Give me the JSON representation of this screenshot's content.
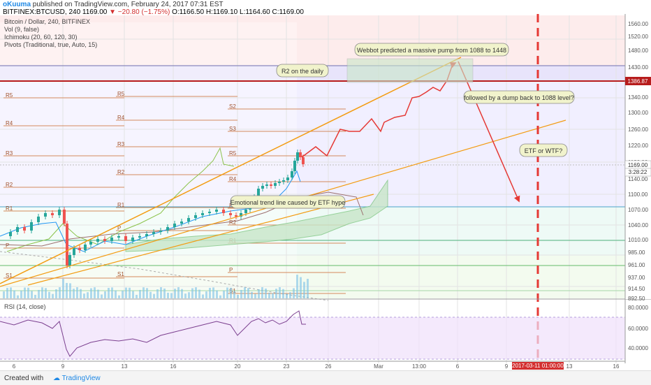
{
  "header": {
    "author": "oKuuma",
    "published_text": "published on TradingView.com, February 24, 2017 07:31 EST",
    "symbol": "BITFINEX:BTCUSD, 240",
    "last": "1169.00",
    "change": "−20.80 (−1.75%)",
    "ohlc": "O:1166.50 H:1169.10 L:1164.60 C:1169.00"
  },
  "indicators": [
    "Bitcoin / Dollar, 240, BITFINEX",
    "Vol (9, false)",
    "Ichimoku (20, 60, 120, 30)",
    "Pivots (Traditional, true, Auto, 15)"
  ],
  "rsi_label": "RSI (14, close)",
  "annotations": {
    "webbot": "Webbot predicted a massive pump from 1088 to 1448",
    "r2_daily": "R2 on the daily",
    "dump": "followed by a dump back to 1088 level?",
    "etf_wtf": "ETF or WTF?",
    "emotional": "Emotional trend line caused by ETF hype"
  },
  "price_axis": {
    "ticks": [
      "1560.00",
      "1520.00",
      "1480.00",
      "1430.00",
      "1380.00",
      "1340.00",
      "1300.00",
      "1260.00",
      "1220.00",
      "1180.00",
      "1140.00",
      "1100.00",
      "1070.00",
      "1040.00",
      "1010.00",
      "985.00",
      "961.00",
      "937.00",
      "914.50",
      "892.50"
    ],
    "resistance_label": "1386.87",
    "current_label": "1169.00",
    "countdown_label": "3:28:22"
  },
  "rsi_axis": {
    "ticks": [
      "80.0000",
      "60.0000",
      "40.0000"
    ]
  },
  "time_axis": {
    "ticks": [
      "6",
      "9",
      "13",
      "16",
      "20",
      "23",
      "26",
      "Mar",
      "13:00",
      "6",
      "9",
      "13",
      "16"
    ],
    "highlight": "2017-03-11 01:00:00"
  },
  "pivot_labels": [
    "R5",
    "R4",
    "R3",
    "R2",
    "R1",
    "P",
    "S1",
    "R5",
    "R4",
    "R3",
    "R2",
    "R1",
    "P",
    "S1",
    "S2",
    "S3",
    "R5",
    "R4",
    "R3",
    "R2",
    "R1",
    "P",
    "S1",
    "S2",
    "S3"
  ],
  "footer": {
    "created": "Created with",
    "brand": "TradingView"
  },
  "colors": {
    "resistance": "#b71c1c",
    "trend": "#f39c12",
    "up": "#26a69a",
    "down": "#ef5350",
    "dash": "#e53935",
    "rsi": "#7b3f8f"
  },
  "chart_data": {
    "type": "line",
    "price_range": [
      892.5,
      1560
    ],
    "resistance_level": 1386.87,
    "current_price": 1169,
    "targets": {
      "pump_from": 1088,
      "pump_to": 1448,
      "dump_to": 1088
    },
    "rsi_range": [
      30,
      90
    ]
  }
}
